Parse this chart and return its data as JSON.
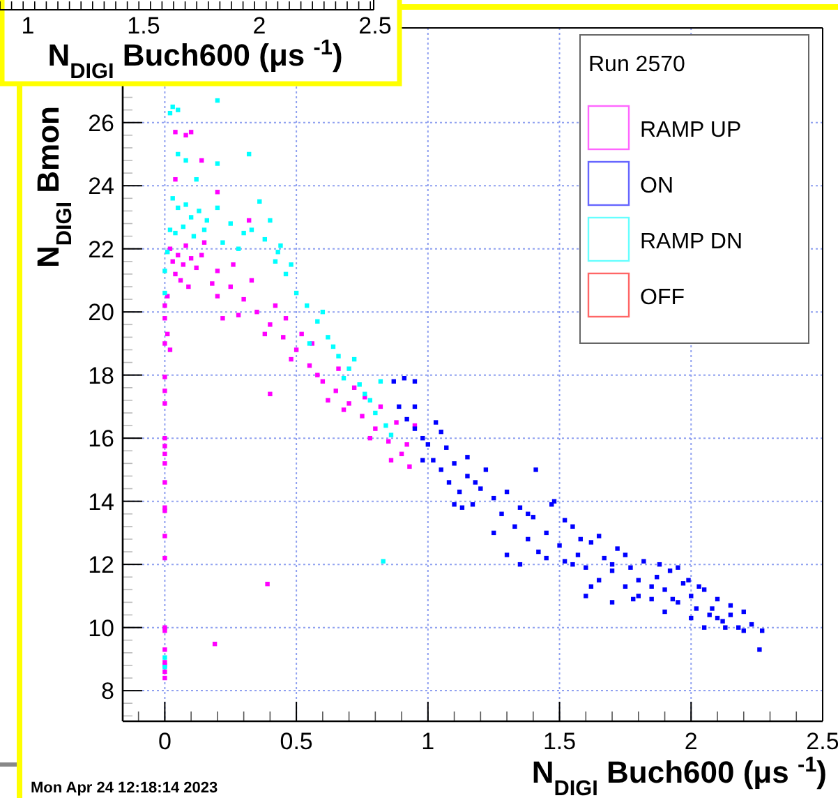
{
  "chart_data": [
    {
      "type": "scatter",
      "xlabel": "N$_{DIGI}$ Buch600 (μs $^{-1}$)",
      "ylabel": "N$_{DIGI}$ Bmon",
      "legend_title": "Run 2570",
      "legend": "top right",
      "grid": true,
      "marker": "square",
      "xlim": [
        -0.16,
        2.5
      ],
      "xticks": [
        0,
        0.5,
        1,
        1.5,
        2,
        2.5
      ],
      "ylim": [
        7.03,
        29
      ],
      "yticks": [
        8,
        10,
        12,
        14,
        16,
        18,
        20,
        22,
        24,
        26
      ],
      "annotations": [
        "Mon Apr 24 12:18:14 2023",
        "1",
        "1.5",
        "2",
        "2.5",
        "N$_{DIGI}$ Buch600 (μs $^{-1}$)"
      ],
      "series": [
        {
          "name": "RAMP UP",
          "color": "#ff00ff",
          "x": [
            0,
            0,
            0,
            0,
            0,
            0,
            0,
            0,
            0,
            0,
            0,
            0,
            0,
            0,
            0,
            0,
            0,
            0,
            0,
            0.39,
            0.19,
            0.4,
            0.02,
            0.03,
            0.05,
            0.07,
            0.08,
            0.1,
            0.12,
            0.14,
            0.04,
            0.06,
            0.09,
            0.01,
            0,
            0,
            0.01,
            0.02,
            0,
            0.04,
            0.08,
            0.1,
            0.14,
            0.04,
            0.2,
            0.32,
            0.15,
            0.2,
            0.25,
            0.3,
            0.35,
            0.4,
            0.45,
            0.5,
            0.55,
            0.6,
            0.65,
            0.7,
            0.75,
            0.8,
            0.85,
            0.9,
            0.93,
            0.2,
            0.28,
            0.33,
            0.38,
            0.42,
            0.48,
            0.52,
            0.58,
            0.62,
            0.68,
            0.72,
            0.78,
            0.82,
            0.88,
            0.92,
            0.95,
            0.22,
            0.26,
            0.18,
            0.46,
            0.56,
            0.66,
            0.76,
            0.86
          ],
          "values": [
            17.94,
            17.5,
            17.1,
            16.0,
            15.75,
            15.5,
            15.2,
            14.6,
            13.8,
            13.7,
            12.9,
            12.2,
            10.0,
            9.9,
            9.3,
            8.9,
            8.8,
            8.6,
            8.4,
            11.38,
            9.48,
            17.4,
            22.0,
            21.6,
            21.8,
            21.5,
            22.1,
            21.7,
            21.4,
            21.8,
            21.2,
            21.0,
            20.8,
            20.5,
            20.2,
            19.8,
            19.3,
            18.8,
            19.0,
            25.7,
            25.6,
            25.7,
            24.8,
            24.2,
            23.8,
            22.9,
            22.2,
            21.3,
            20.8,
            20.4,
            20.0,
            19.6,
            19.2,
            18.8,
            18.3,
            17.8,
            17.5,
            17.1,
            16.7,
            16.3,
            15.9,
            15.5,
            15.1,
            20.5,
            19.9,
            21.0,
            19.3,
            20.2,
            18.5,
            19.3,
            18.0,
            17.2,
            16.9,
            17.6,
            16.0,
            17.0,
            16.5,
            15.8,
            16.4,
            19.8,
            21.5,
            20.9,
            19.8,
            19.0,
            18.2,
            17.3,
            15.3
          ]
        },
        {
          "name": "ON",
          "color": "#0000ff",
          "x": [
            0.87,
            0.91,
            0.95,
            0.89,
            0.92,
            0.95,
            0.98,
            1.0,
            1.03,
            1.02,
            1.05,
            1.07,
            1.08,
            1.1,
            1.12,
            1.15,
            1.17,
            1.2,
            1.22,
            1.25,
            1.28,
            1.3,
            1.33,
            1.35,
            1.38,
            1.4,
            1.42,
            1.45,
            1.47,
            1.5,
            1.52,
            1.55,
            1.57,
            1.6,
            1.62,
            1.65,
            1.67,
            1.7,
            1.72,
            1.75,
            1.77,
            1.8,
            1.82,
            1.85,
            1.87,
            1.9,
            1.92,
            1.95,
            1.97,
            2.0,
            2.02,
            2.05,
            2.07,
            2.1,
            2.12,
            2.15,
            2.18,
            2.2,
            2.23,
            2.27,
            2.26,
            1.41,
            1.25,
            1.1,
            1.35,
            1.6,
            1.7,
            1.48,
            1.55,
            1.65,
            1.8,
            1.9,
            2.0,
            2.05,
            2.1,
            1.95,
            2.15,
            1.85,
            1.75,
            1.58,
            1.38,
            1.18,
            1.13,
            1.3,
            1.45,
            1.62,
            1.78,
            1.93,
            2.08,
            2.2,
            1.99,
            1.88,
            2.03,
            2.13,
            1.7,
            1.52,
            1.05,
            0.95,
            0.98,
            1.15
          ],
          "values": [
            17.8,
            17.9,
            17.8,
            17.0,
            16.6,
            16.3,
            16.0,
            15.8,
            16.5,
            15.3,
            15.0,
            15.7,
            14.6,
            15.2,
            14.3,
            14.8,
            13.9,
            14.4,
            15.0,
            14.1,
            13.6,
            14.3,
            13.2,
            13.8,
            12.8,
            13.5,
            12.4,
            13.0,
            13.9,
            12.6,
            12.1,
            13.2,
            12.3,
            11.9,
            12.7,
            11.5,
            12.2,
            11.8,
            12.5,
            11.3,
            11.9,
            11.5,
            12.1,
            10.9,
            11.6,
            11.2,
            11.8,
            10.8,
            11.4,
            11.0,
            10.6,
            11.2,
            10.4,
            10.9,
            10.2,
            10.7,
            10.0,
            10.5,
            10.1,
            9.9,
            9.3,
            15.0,
            13.0,
            13.9,
            12.0,
            11.0,
            10.8,
            14.0,
            12.0,
            12.9,
            11.0,
            10.5,
            10.3,
            10.0,
            10.3,
            11.9,
            10.4,
            11.3,
            12.3,
            12.8,
            13.6,
            14.6,
            13.8,
            12.3,
            12.2,
            11.3,
            10.9,
            10.9,
            10.6,
            9.9,
            11.5,
            12.0,
            11.3,
            10.0,
            12.0,
            13.4,
            16.2,
            17.0,
            15.3,
            15.4
          ]
        },
        {
          "name": "RAMP DN",
          "color": "#00ffff",
          "x": [
            0.02,
            0.03,
            0.05,
            0.2,
            0.05,
            0.08,
            0.32,
            0.2,
            0.12,
            0.03,
            0.05,
            0.08,
            0.1,
            0.13,
            0.16,
            0.2,
            0.25,
            0.3,
            0.02,
            0.04,
            0.07,
            0.11,
            0.15,
            0.22,
            0.28,
            0.33,
            0.38,
            0.42,
            0.46,
            0.5,
            0.54,
            0.58,
            0.62,
            0.66,
            0.7,
            0.74,
            0.78,
            0.8,
            0.84,
            0.86,
            0.6,
            0.64,
            0.72,
            0.76,
            0.82,
            0.36,
            0.4,
            0.55,
            0.68,
            0.48,
            0.44,
            0,
            0,
            0.01,
            0.83,
            0,
            0,
            0.43
          ],
          "values": [
            26.3,
            26.5,
            26.4,
            26.7,
            25.0,
            24.8,
            25.0,
            24.7,
            24.2,
            23.6,
            23.3,
            23.4,
            23.0,
            23.2,
            22.9,
            23.3,
            22.8,
            22.5,
            22.6,
            22.5,
            22.7,
            22.4,
            22.6,
            22.2,
            22.0,
            22.6,
            22.3,
            21.6,
            21.2,
            20.6,
            20.2,
            19.7,
            19.2,
            18.6,
            18.2,
            17.7,
            17.2,
            16.8,
            16.4,
            16.1,
            20.0,
            18.9,
            18.5,
            17.4,
            17.8,
            23.5,
            22.9,
            19.0,
            17.9,
            21.5,
            22.1,
            21.3,
            20.6,
            21.9,
            12.1,
            9.05,
            8.75,
            21.9
          ]
        },
        {
          "name": "OFF",
          "color": "#ff0000"
        }
      ]
    }
  ]
}
